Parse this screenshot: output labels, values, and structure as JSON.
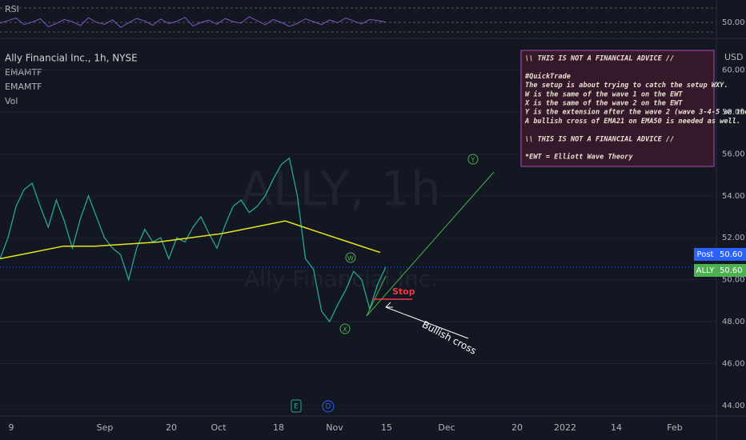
{
  "header": {
    "symbol": "Ally Financial Inc., 1h, NYSE",
    "indicators": [
      "EMAMTF",
      "EMAMTF",
      "Vol"
    ],
    "rsi_label": "RSI",
    "currency": "USD"
  },
  "watermark": {
    "ticker": "ALLY, 1h",
    "name": "Ally Financial Inc."
  },
  "rsi": {
    "level_label": {
      "value": 50,
      "label": "50.00"
    },
    "values": [
      48,
      55,
      62,
      44,
      51,
      60,
      38,
      47,
      58,
      52,
      41,
      63,
      50,
      45,
      57,
      36,
      49,
      61,
      54,
      42,
      59,
      47,
      53,
      64,
      40,
      50,
      56,
      45,
      61,
      52,
      48,
      66,
      55,
      43,
      58,
      50,
      39,
      47,
      60,
      52,
      44,
      57,
      49,
      62,
      54,
      46,
      58,
      55,
      51
    ]
  },
  "price": {
    "ylim": [
      43.5,
      61.2
    ],
    "yticks": [
      {
        "value": 44,
        "label": "44.00"
      },
      {
        "value": 46,
        "label": "46.00"
      },
      {
        "value": 48,
        "label": "48.00"
      },
      {
        "value": 50,
        "label": "50.00"
      },
      {
        "value": 52,
        "label": "52.00"
      },
      {
        "value": 54,
        "label": "54.00"
      },
      {
        "value": 56,
        "label": "56.00"
      },
      {
        "value": 58,
        "label": "58.00"
      },
      {
        "value": 60,
        "label": "60.00"
      }
    ],
    "close": [
      51.0,
      52.0,
      53.5,
      54.3,
      54.6,
      53.5,
      52.5,
      53.8,
      52.8,
      51.5,
      52.9,
      54.0,
      53.0,
      52.0,
      51.5,
      51.2,
      50.0,
      51.5,
      52.4,
      51.8,
      52.0,
      51.0,
      52.0,
      51.8,
      52.5,
      53.0,
      52.2,
      51.5,
      52.6,
      53.5,
      53.8,
      53.2,
      53.5,
      54.0,
      54.8,
      55.5,
      55.8,
      54.0,
      51.0,
      50.5,
      48.5,
      48.0,
      48.8,
      49.5,
      50.4,
      50.0,
      48.6,
      49.8,
      50.6
    ],
    "ema200": [
      51.0,
      51.3,
      51.6,
      51.6,
      51.7,
      51.8,
      52.0,
      52.2,
      52.5,
      52.8,
      52.3,
      51.8,
      51.3
    ],
    "last": {
      "post_label": "Post",
      "post_value": {
        "value": 50.6,
        "label": "50.60"
      },
      "ticker_label": "ALLY",
      "ticker_value": {
        "value": 50.6,
        "label": "50.60"
      }
    }
  },
  "x_axis": [
    "9",
    "Sep",
    "20",
    "Oct",
    "18",
    "Nov",
    "15",
    "Dec",
    "20",
    "2022",
    "14",
    "Feb"
  ],
  "annotations": {
    "waves": [
      "W",
      "X",
      "Y"
    ],
    "stop": "Stop",
    "bullish": "Bullish cross",
    "events": [
      "E",
      "D"
    ]
  },
  "note": [
    "\\\\ THIS IS NOT A FINANCIAL ADVICE //",
    "",
    "#QuickTrade",
    "The setup is about trying to catch the setup WXY.",
    "W is the same of the wave 1 on the EWT",
    "X is the same of the wave 2 on the EWT",
    "Y is the extension after the wave 2 (wave 3-4-5 on the EWT",
    "A bullish cross of EMA21 on EMA50 is needed as well.",
    "",
    "\\\\ THIS IS NOT A FINANCIAL ADVICE //",
    "",
    "*EWT = Elliott Wave Theory"
  ]
}
